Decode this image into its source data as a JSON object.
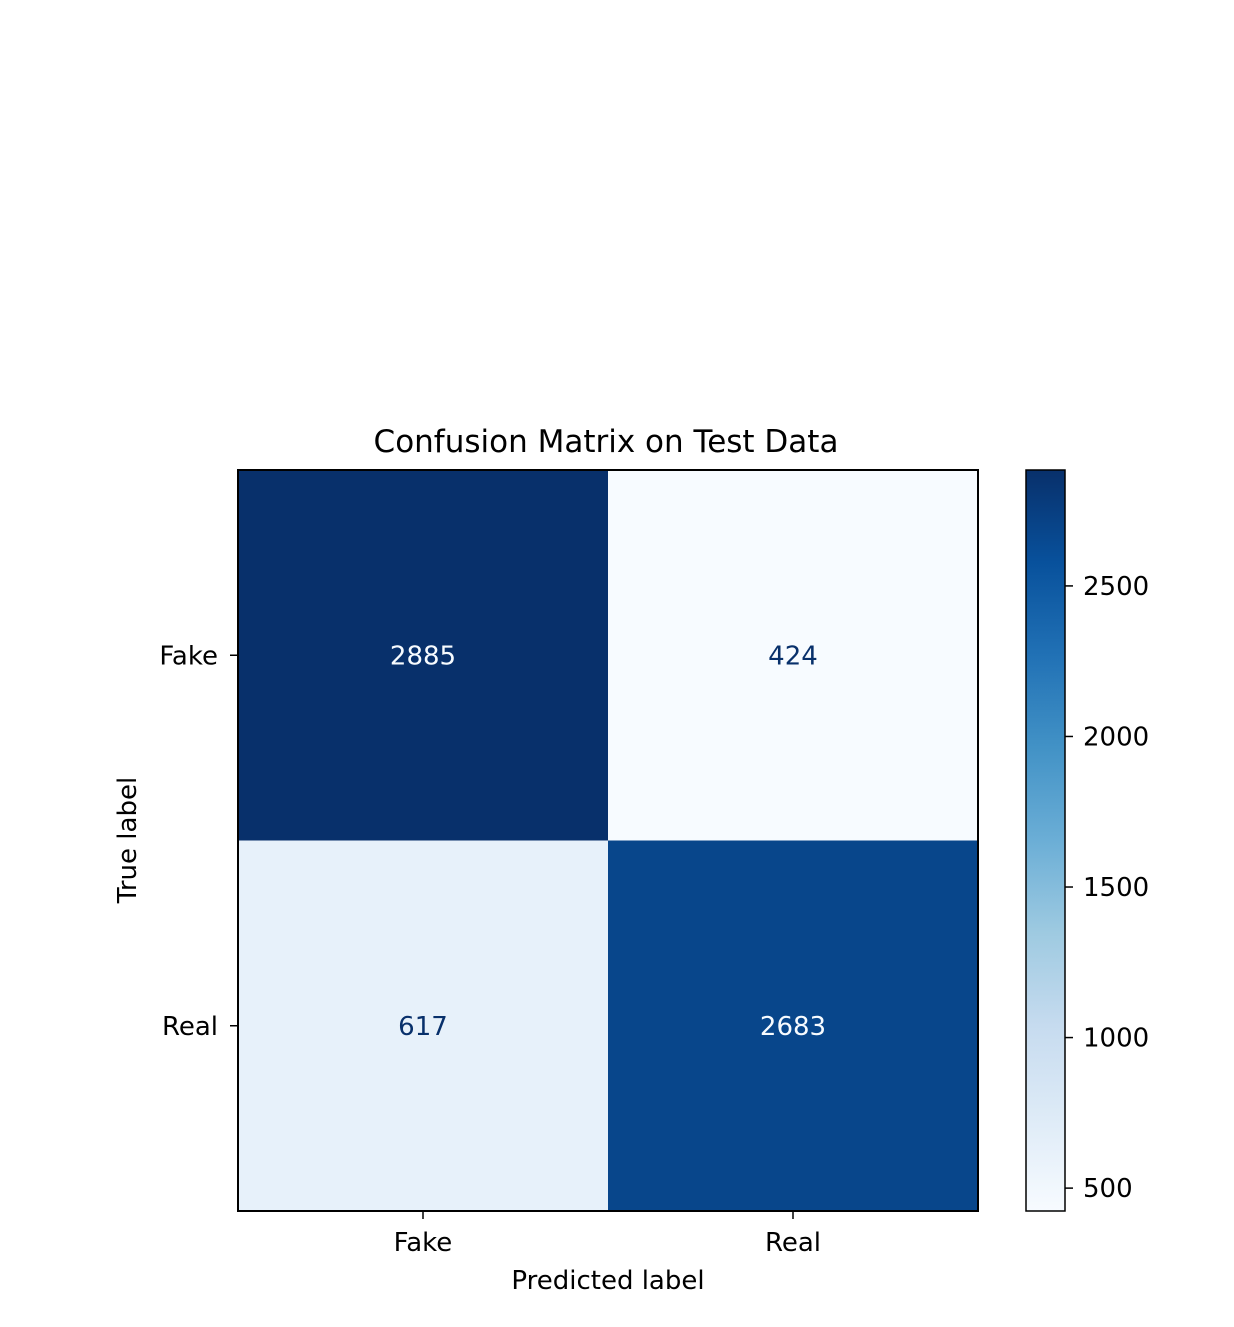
{
  "chart_data": {
    "type": "heatmap",
    "title": "Confusion Matrix on Test Data",
    "xlabel": "Predicted label",
    "ylabel": "True label",
    "x_categories": [
      "Fake",
      "Real"
    ],
    "y_categories": [
      "Fake",
      "Real"
    ],
    "values": [
      [
        2885,
        424
      ],
      [
        617,
        2683
      ]
    ],
    "colormap": "Blues",
    "colorbar": {
      "min": 424,
      "max": 2885,
      "ticks": [
        500,
        1000,
        1500,
        2000,
        2500
      ]
    },
    "grid": false
  }
}
